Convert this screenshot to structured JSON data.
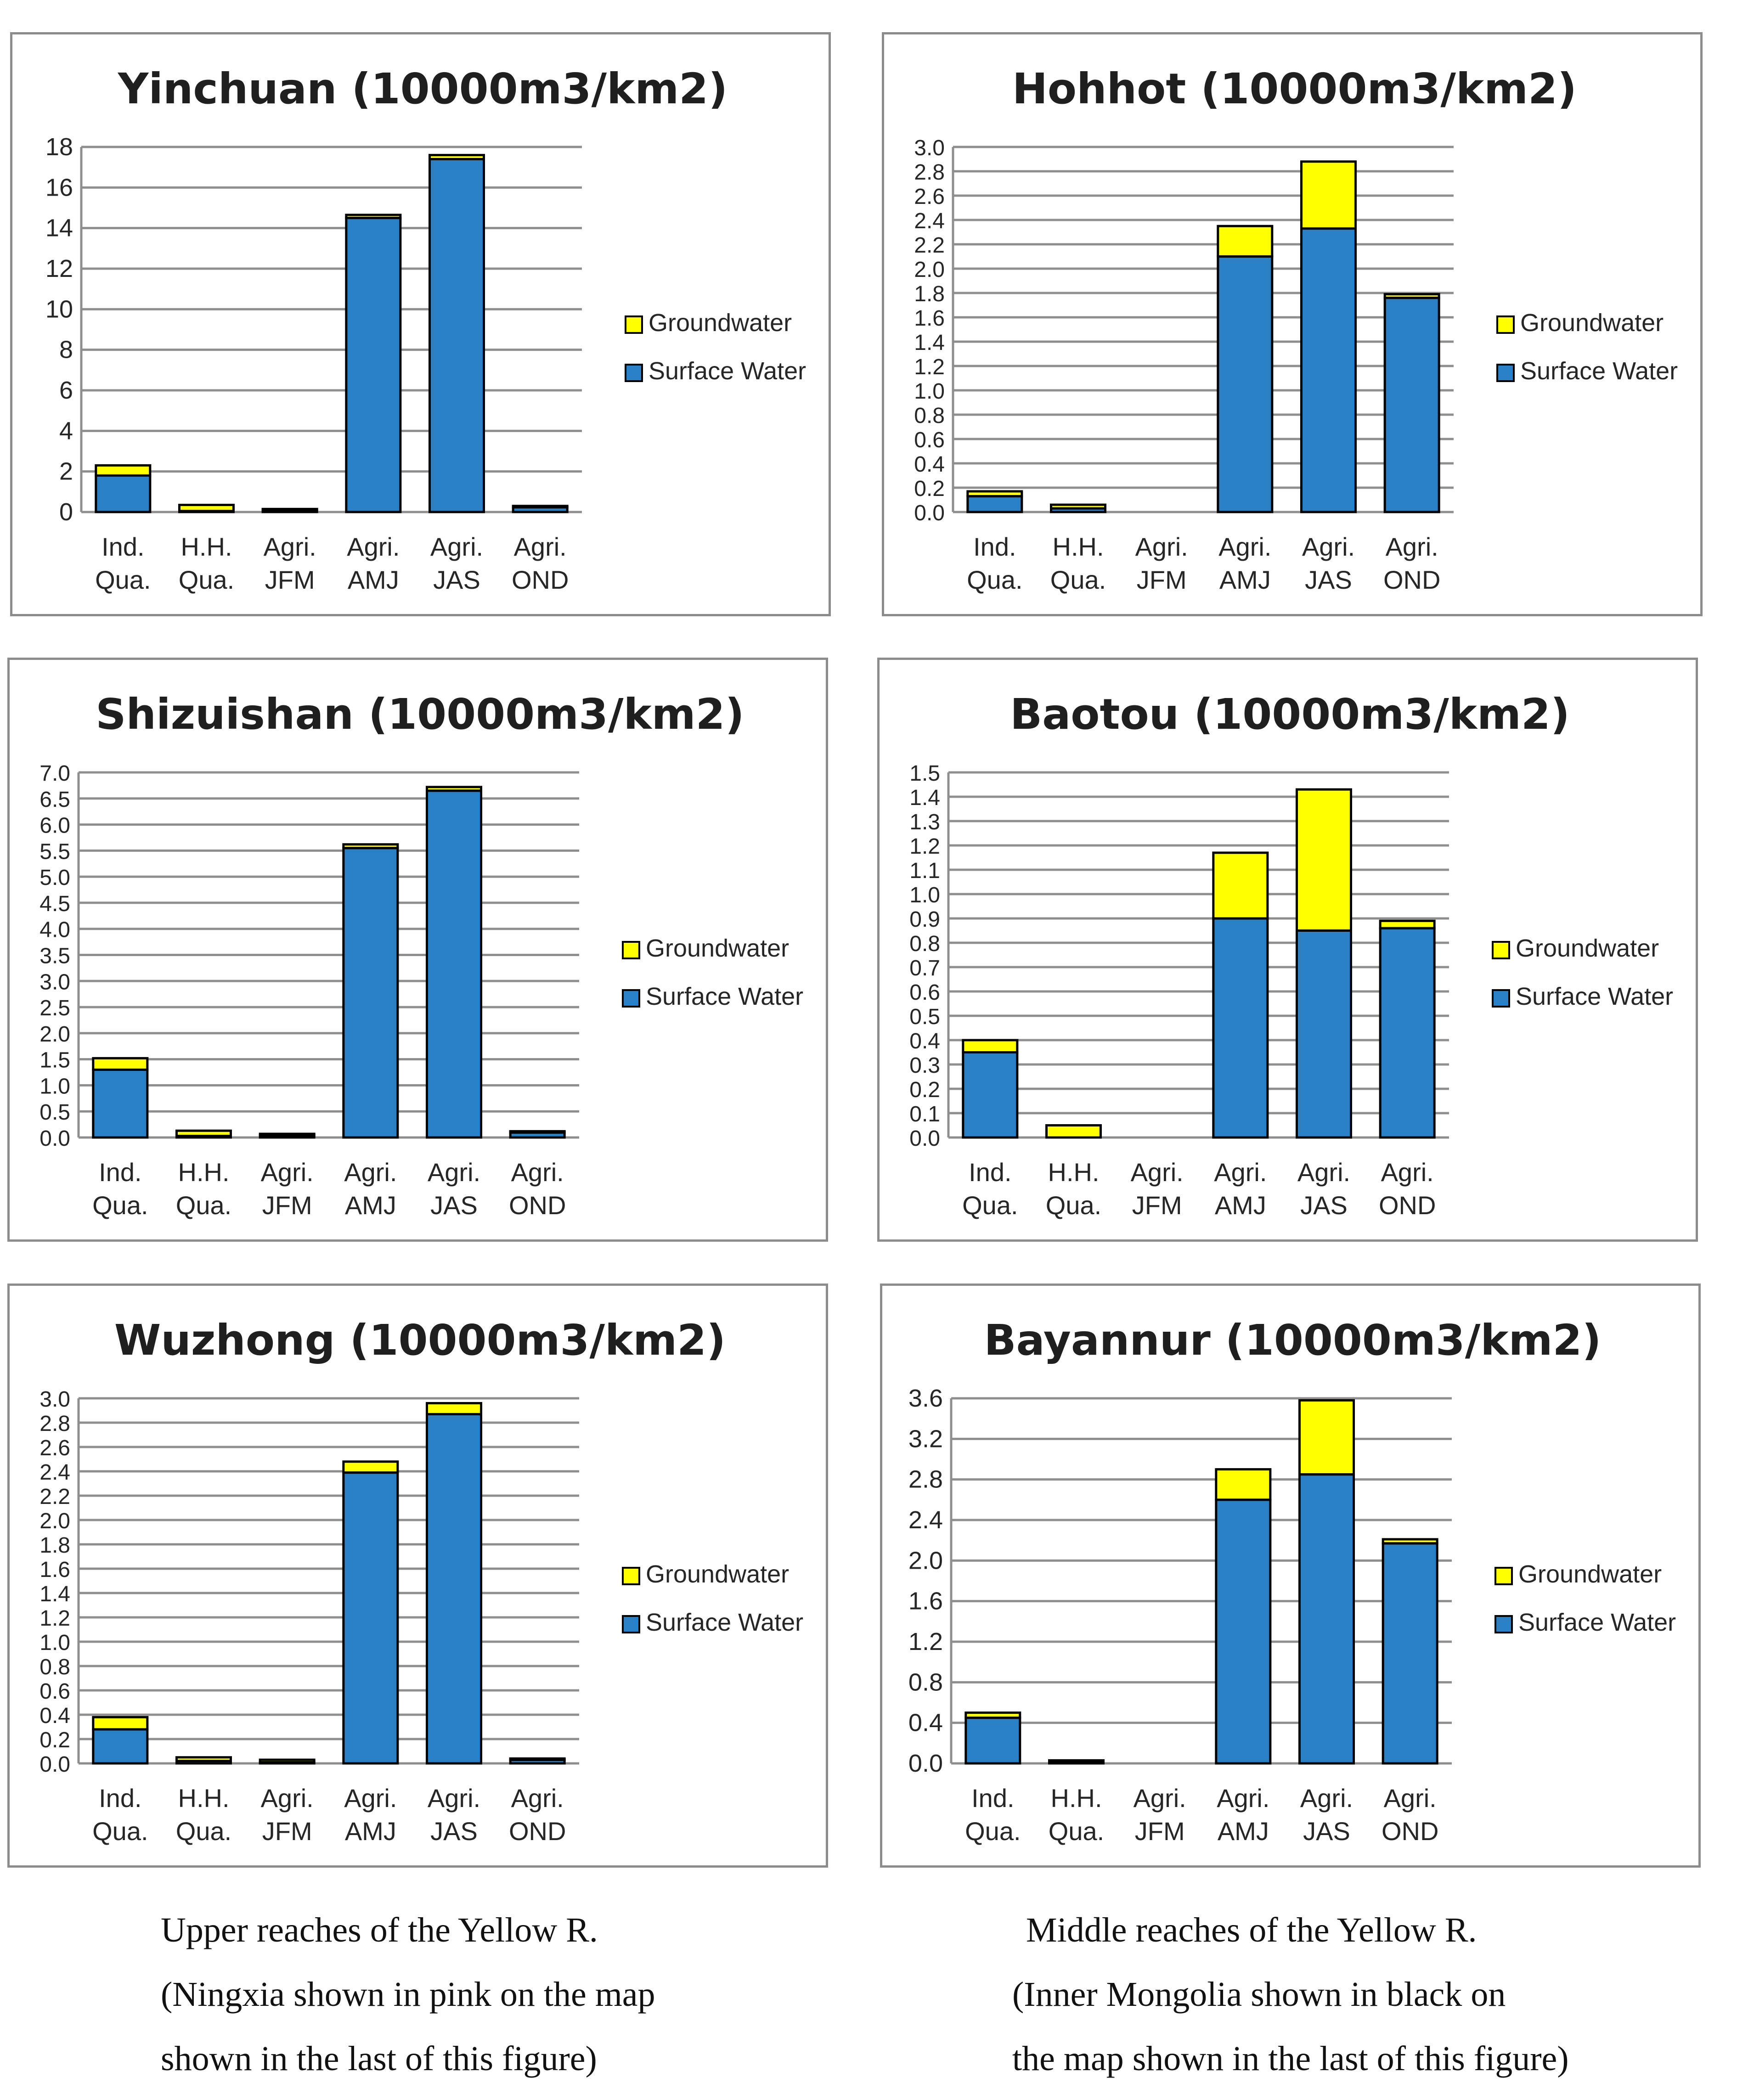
{
  "colors": {
    "surface": "#2980c4",
    "ground": "#ffff00",
    "grid": "#8e8e8e",
    "border": "#000000"
  },
  "legend": {
    "groundwater": "Groundwater",
    "surface": "Surface Water"
  },
  "chart_data": [
    {
      "type": "bar",
      "stacked": true,
      "title": "Yinchuan (10000m3/km2)",
      "categories": [
        [
          "Ind.",
          "Qua."
        ],
        [
          "H.H.",
          "Qua."
        ],
        [
          "Agri.",
          "JFM"
        ],
        [
          "Agri.",
          "AMJ"
        ],
        [
          "Agri.",
          "JAS"
        ],
        [
          "Agri.",
          "OND"
        ]
      ],
      "series": [
        {
          "name": "Surface Water",
          "values": [
            1.8,
            0.05,
            0.1,
            14.5,
            17.4,
            0.25
          ]
        },
        {
          "name": "Groundwater",
          "values": [
            0.5,
            0.3,
            0.05,
            0.15,
            0.2,
            0.05
          ]
        }
      ],
      "ylim": [
        0,
        18
      ],
      "yticks": [
        "0",
        "2",
        "4",
        "6",
        "8",
        "10",
        "12",
        "14",
        "16",
        "18"
      ],
      "legend_position": "right"
    },
    {
      "type": "bar",
      "stacked": true,
      "title": "Hohhot (10000m3/km2)",
      "categories": [
        [
          "Ind.",
          "Qua."
        ],
        [
          "H.H.",
          "Qua."
        ],
        [
          "Agri.",
          "JFM"
        ],
        [
          "Agri.",
          "AMJ"
        ],
        [
          "Agri.",
          "JAS"
        ],
        [
          "Agri.",
          "OND"
        ]
      ],
      "series": [
        {
          "name": "Surface Water",
          "values": [
            0.13,
            0.03,
            0,
            2.1,
            2.33,
            1.76
          ]
        },
        {
          "name": "Groundwater",
          "values": [
            0.04,
            0.03,
            0,
            0.25,
            0.55,
            0.03
          ]
        }
      ],
      "ylim": [
        0,
        3.0
      ],
      "yticks": [
        "0.0",
        "0.2",
        "0.4",
        "0.6",
        "0.8",
        "1.0",
        "1.2",
        "1.4",
        "1.6",
        "1.8",
        "2.0",
        "2.2",
        "2.4",
        "2.6",
        "2.8",
        "3.0"
      ],
      "legend_position": "right"
    },
    {
      "type": "bar",
      "stacked": true,
      "title": "Shizuishan (10000m3/km2)",
      "categories": [
        [
          "Ind.",
          "Qua."
        ],
        [
          "H.H.",
          "Qua."
        ],
        [
          "Agri.",
          "JFM"
        ],
        [
          "Agri.",
          "AMJ"
        ],
        [
          "Agri.",
          "JAS"
        ],
        [
          "Agri.",
          "OND"
        ]
      ],
      "series": [
        {
          "name": "Surface Water",
          "values": [
            1.3,
            0.03,
            0.05,
            5.55,
            6.65,
            0.1
          ]
        },
        {
          "name": "Groundwater",
          "values": [
            0.22,
            0.1,
            0.02,
            0.07,
            0.07,
            0.02
          ]
        }
      ],
      "ylim": [
        0,
        7.0
      ],
      "yticks": [
        "0.0",
        "0.5",
        "1.0",
        "1.5",
        "2.0",
        "2.5",
        "3.0",
        "3.5",
        "4.0",
        "4.5",
        "5.0",
        "5.5",
        "6.0",
        "6.5",
        "7.0"
      ],
      "legend_position": "right"
    },
    {
      "type": "bar",
      "stacked": true,
      "title": "Baotou (10000m3/km2)",
      "categories": [
        [
          "Ind.",
          "Qua."
        ],
        [
          "H.H.",
          "Qua."
        ],
        [
          "Agri.",
          "JFM"
        ],
        [
          "Agri.",
          "AMJ"
        ],
        [
          "Agri.",
          "JAS"
        ],
        [
          "Agri.",
          "OND"
        ]
      ],
      "series": [
        {
          "name": "Surface Water",
          "values": [
            0.35,
            0,
            0,
            0.9,
            0.85,
            0.86
          ]
        },
        {
          "name": "Groundwater",
          "values": [
            0.05,
            0.05,
            0,
            0.27,
            0.58,
            0.03
          ]
        }
      ],
      "ylim": [
        0,
        1.5
      ],
      "yticks": [
        "0.0",
        "0.1",
        "0.2",
        "0.3",
        "0.4",
        "0.5",
        "0.6",
        "0.7",
        "0.8",
        "0.9",
        "1.0",
        "1.1",
        "1.2",
        "1.3",
        "1.4",
        "1.5"
      ],
      "legend_position": "right"
    },
    {
      "type": "bar",
      "stacked": true,
      "title": "Wuzhong (10000m3/km2)",
      "categories": [
        [
          "Ind.",
          "Qua."
        ],
        [
          "H.H.",
          "Qua."
        ],
        [
          "Agri.",
          "JFM"
        ],
        [
          "Agri.",
          "AMJ"
        ],
        [
          "Agri.",
          "JAS"
        ],
        [
          "Agri.",
          "OND"
        ]
      ],
      "series": [
        {
          "name": "Surface Water",
          "values": [
            0.28,
            0.02,
            0.01,
            2.39,
            2.87,
            0.03
          ]
        },
        {
          "name": "Groundwater",
          "values": [
            0.1,
            0.03,
            0.02,
            0.09,
            0.09,
            0.01
          ]
        }
      ],
      "ylim": [
        0,
        3.0
      ],
      "yticks": [
        "0.0",
        "0.2",
        "0.4",
        "0.6",
        "0.8",
        "1.0",
        "1.2",
        "1.4",
        "1.6",
        "1.8",
        "2.0",
        "2.2",
        "2.4",
        "2.6",
        "2.8",
        "3.0"
      ],
      "legend_position": "right"
    },
    {
      "type": "bar",
      "stacked": true,
      "title": "Bayannur (10000m3/km2)",
      "categories": [
        [
          "Ind.",
          "Qua."
        ],
        [
          "H.H.",
          "Qua."
        ],
        [
          "Agri.",
          "JFM"
        ],
        [
          "Agri.",
          "AMJ"
        ],
        [
          "Agri.",
          "JAS"
        ],
        [
          "Agri.",
          "OND"
        ]
      ],
      "series": [
        {
          "name": "Surface Water",
          "values": [
            0.45,
            0.02,
            0,
            2.6,
            2.85,
            2.17
          ]
        },
        {
          "name": "Groundwater",
          "values": [
            0.05,
            0.01,
            0,
            0.3,
            0.73,
            0.04
          ]
        }
      ],
      "ylim": [
        0,
        3.6
      ],
      "yticks": [
        "0.0",
        "0.4",
        "0.8",
        "1.2",
        "1.6",
        "2.0",
        "2.4",
        "2.8",
        "3.2",
        "3.6"
      ],
      "legend_position": "right"
    }
  ],
  "captions": {
    "left": [
      "Upper reaches of the Yellow R.",
      "(Ningxia shown in pink on the map",
      "shown in the last of this figure)"
    ],
    "right": [
      "Middle reaches of the Yellow R.",
      "(Inner Mongolia shown in black on",
      "the map shown in the last of this figure)"
    ]
  }
}
